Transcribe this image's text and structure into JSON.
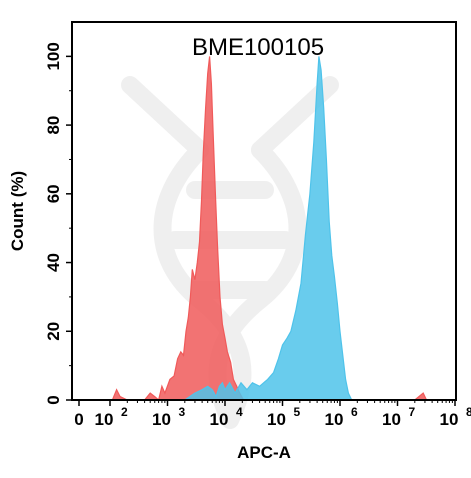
{
  "chart_data": {
    "type": "area",
    "title": "BME100105",
    "xlabel": "APC-A",
    "ylabel": "Count  (%)",
    "x_scale": "biexponential",
    "xlim": [
      0,
      100000000
    ],
    "ylim": [
      0,
      110
    ],
    "x_tick_labels": [
      {
        "base": "0",
        "exp": ""
      },
      {
        "base": "10",
        "exp": "2"
      },
      {
        "base": "10",
        "exp": "3"
      },
      {
        "base": "10",
        "exp": "4"
      },
      {
        "base": "10",
        "exp": "5"
      },
      {
        "base": "10",
        "exp": "6"
      },
      {
        "base": "10",
        "exp": "7"
      },
      {
        "base": "10",
        "exp": "8"
      }
    ],
    "y_ticks": [
      0,
      20,
      40,
      60,
      80,
      100
    ],
    "series": [
      {
        "color": "#f05a5a",
        "fill_opacity": 0.85,
        "points": [
          [
            5,
            0
          ],
          [
            10,
            0
          ],
          [
            50,
            0
          ],
          [
            110,
            0
          ],
          [
            130,
            3
          ],
          [
            150,
            1
          ],
          [
            200,
            0
          ],
          [
            400,
            0
          ],
          [
            500,
            2
          ],
          [
            600,
            1
          ],
          [
            700,
            0
          ],
          [
            800,
            4
          ],
          [
            900,
            2
          ],
          [
            1100,
            6
          ],
          [
            1300,
            7
          ],
          [
            1500,
            12
          ],
          [
            1700,
            14
          ],
          [
            1900,
            13
          ],
          [
            2100,
            20
          ],
          [
            2300,
            24
          ],
          [
            2500,
            30
          ],
          [
            2700,
            38
          ],
          [
            3000,
            35
          ],
          [
            3300,
            40
          ],
          [
            3600,
            46
          ],
          [
            3900,
            58
          ],
          [
            4200,
            72
          ],
          [
            4600,
            85
          ],
          [
            5000,
            95
          ],
          [
            5400,
            100
          ],
          [
            5800,
            92
          ],
          [
            6200,
            78
          ],
          [
            6800,
            60
          ],
          [
            7400,
            45
          ],
          [
            8200,
            30
          ],
          [
            9000,
            22
          ],
          [
            10000,
            18
          ],
          [
            11000,
            14
          ],
          [
            12500,
            11
          ],
          [
            14000,
            6
          ],
          [
            16000,
            4
          ],
          [
            18000,
            2
          ],
          [
            21000,
            0
          ],
          [
            30000,
            0
          ],
          [
            60000,
            0
          ],
          [
            1000000,
            0
          ],
          [
            20000000,
            0
          ],
          [
            28000000,
            2
          ],
          [
            32000000,
            0
          ],
          [
            100000000,
            0
          ]
        ]
      },
      {
        "color": "#4fc3ea",
        "fill_opacity": 0.85,
        "points": [
          [
            5,
            0
          ],
          [
            1000,
            0
          ],
          [
            2000,
            0
          ],
          [
            3000,
            2
          ],
          [
            4000,
            3
          ],
          [
            5000,
            4
          ],
          [
            6000,
            3
          ],
          [
            7000,
            1
          ],
          [
            8000,
            4
          ],
          [
            9000,
            5
          ],
          [
            10000,
            3
          ],
          [
            12000,
            5
          ],
          [
            15000,
            2
          ],
          [
            19000,
            5
          ],
          [
            24000,
            3
          ],
          [
            30000,
            5
          ],
          [
            40000,
            4
          ],
          [
            55000,
            6
          ],
          [
            70000,
            8
          ],
          [
            85000,
            12
          ],
          [
            100000,
            16
          ],
          [
            120000,
            18
          ],
          [
            140000,
            20
          ],
          [
            170000,
            26
          ],
          [
            210000,
            34
          ],
          [
            250000,
            48
          ],
          [
            300000,
            60
          ],
          [
            350000,
            75
          ],
          [
            400000,
            92
          ],
          [
            430000,
            100
          ],
          [
            470000,
            96
          ],
          [
            520000,
            85
          ],
          [
            580000,
            70
          ],
          [
            650000,
            52
          ],
          [
            720000,
            42
          ],
          [
            800000,
            36
          ],
          [
            900000,
            28
          ],
          [
            1000000,
            20
          ],
          [
            1100000,
            14
          ],
          [
            1250000,
            6
          ],
          [
            1400000,
            2
          ],
          [
            1600000,
            0
          ],
          [
            100000000,
            0
          ]
        ]
      }
    ],
    "grid": false,
    "legend": "none"
  }
}
